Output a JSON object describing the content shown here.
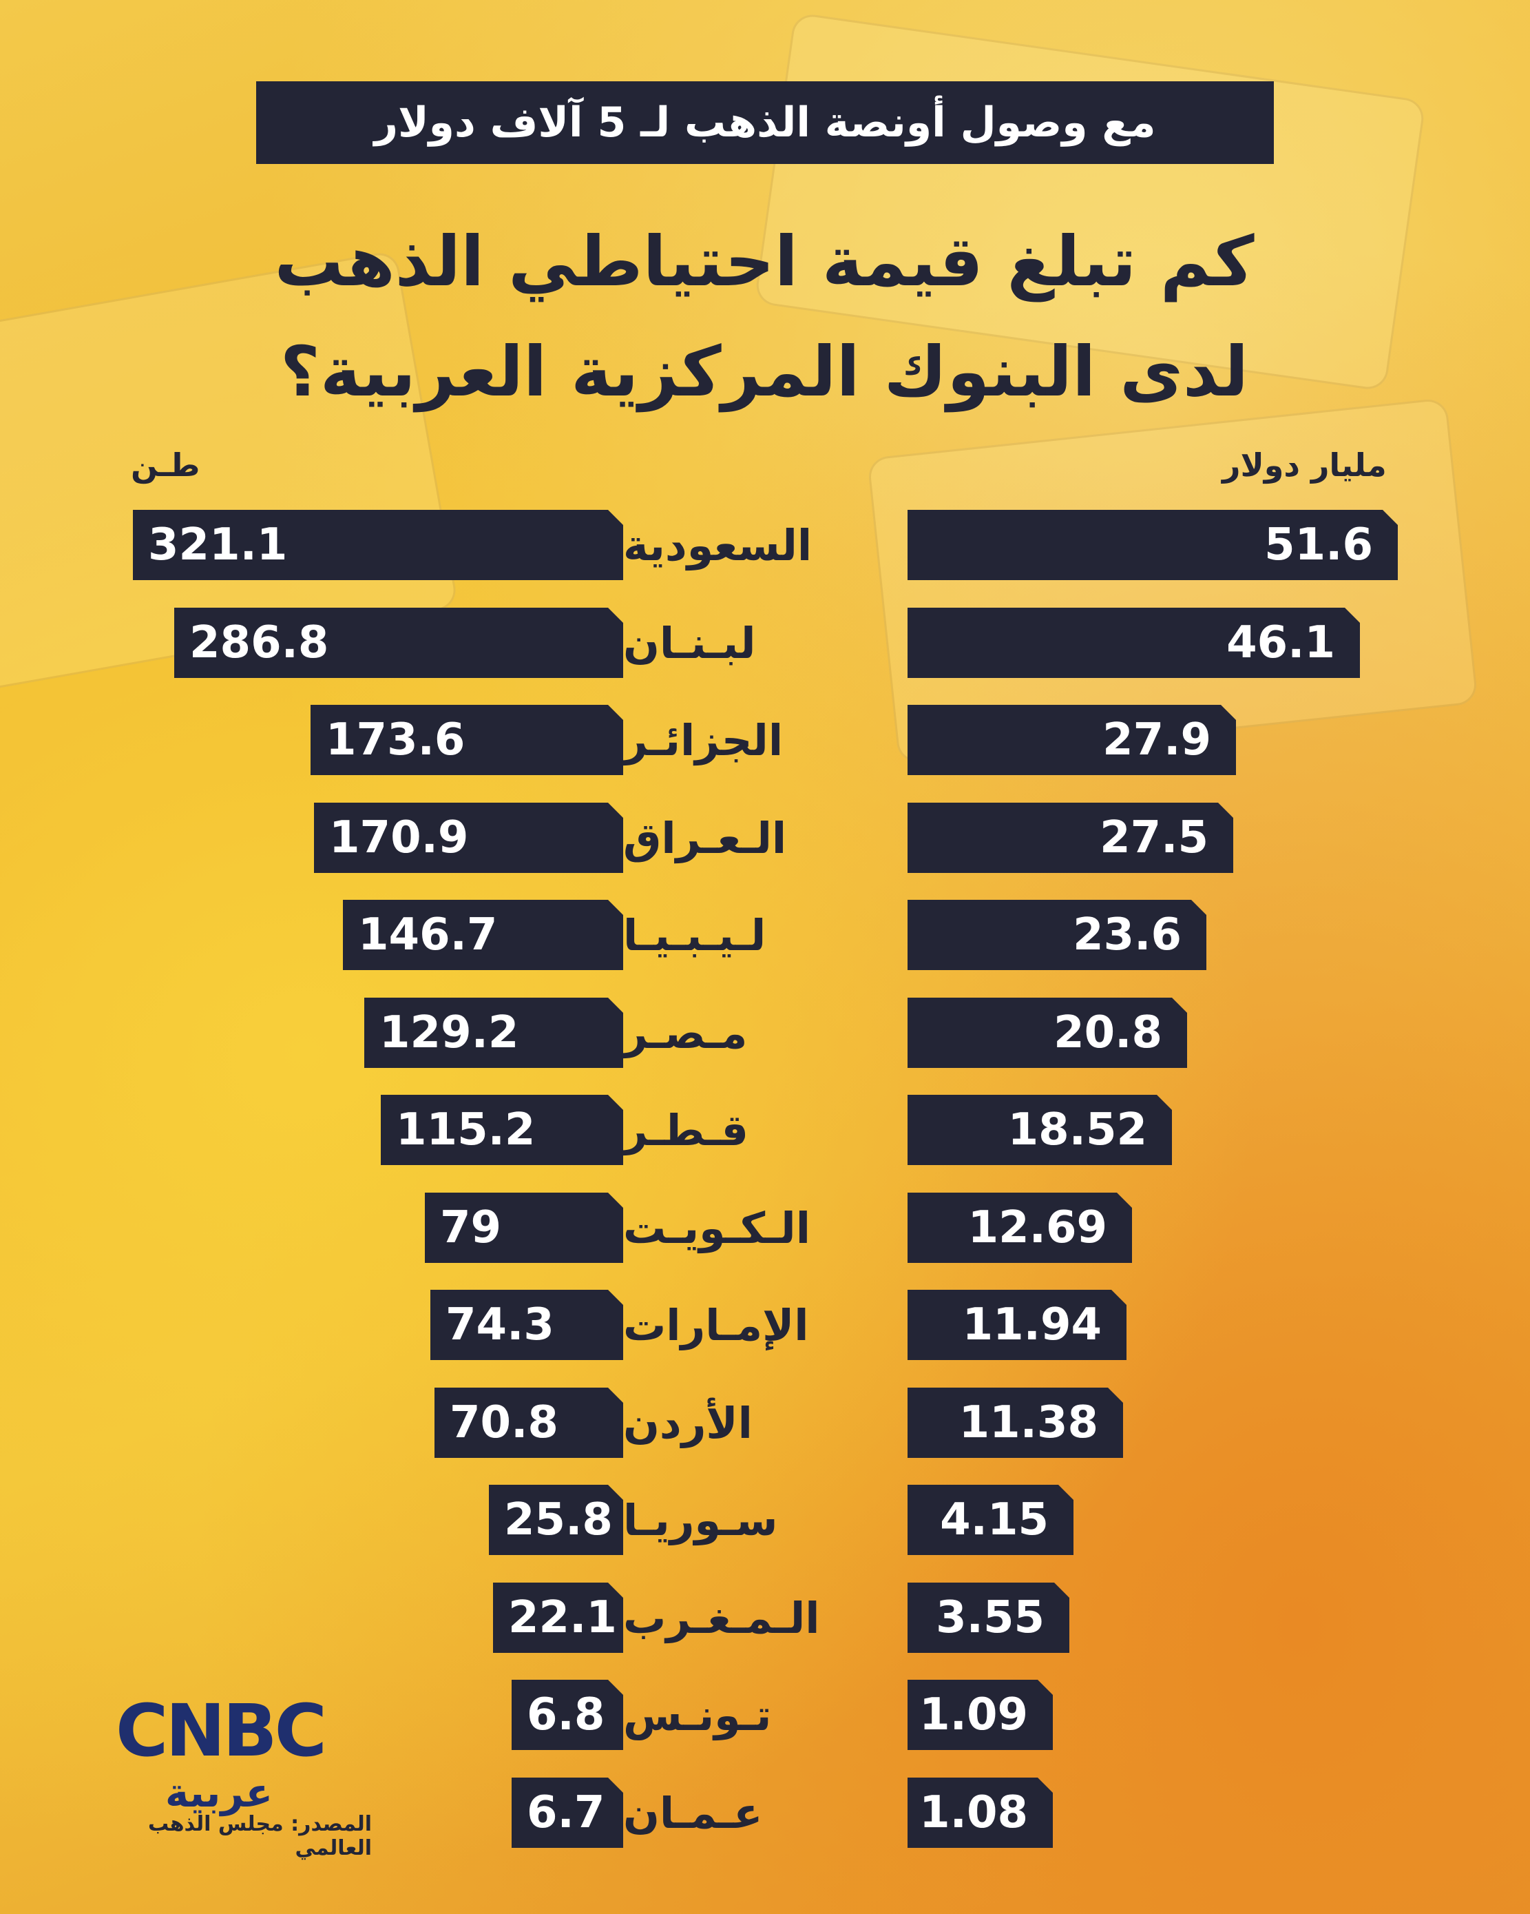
{
  "header": {
    "subtitle": "مع وصول أونصة الذهب لـ 5 آلاف دولار",
    "title_line1": "كم تبلغ قيمة احتياطي الذهب",
    "title_line2": "لدى البنوك المركزية العربية؟"
  },
  "units": {
    "left": "طـن",
    "right": "مليار دولار"
  },
  "chart_data": {
    "type": "bar",
    "categories": [
      "السعودية",
      "لبـنـان",
      "الجزائـر",
      "الـعـراق",
      "لـيـبـيـا",
      "مـصـر",
      "قـطـر",
      "الـكـويـت",
      "الإمـارات",
      "الأردن",
      "سـوريـا",
      "الـمـغـرب",
      "تـونـس",
      "عـمـان"
    ],
    "series": [
      {
        "name": "طـن",
        "values": [
          321.1,
          286.8,
          173.6,
          170.9,
          146.7,
          129.2,
          115.2,
          79,
          74.3,
          70.8,
          25.8,
          22.1,
          6.8,
          6.7
        ]
      },
      {
        "name": "مليار دولار",
        "values": [
          51.6,
          46.1,
          27.9,
          27.5,
          23.6,
          20.8,
          18.52,
          12.69,
          11.94,
          11.38,
          4.15,
          3.55,
          1.09,
          1.08
        ]
      }
    ]
  },
  "labels": {
    "tons": [
      "321.1",
      "286.8",
      "173.6",
      "170.9",
      "146.7",
      "129.2",
      "115.2",
      "79",
      "74.3",
      "70.8",
      "25.8",
      "22.1",
      "6.8",
      "6.7"
    ],
    "usd": [
      "51.6",
      "46.1",
      "27.9",
      "27.5",
      "23.6",
      "20.8",
      "18.52",
      "12.69",
      "11.94",
      "11.38",
      "4.15",
      "3.55",
      "1.09",
      "1.08"
    ]
  },
  "footer": {
    "logo_main": "CNBC",
    "logo_sub": "عربية",
    "source": "المصدر: مجلس الذهب العالمي"
  },
  "colors": {
    "bar": "#232536",
    "text_dark": "#232536",
    "logo": "#1f2f6e"
  }
}
